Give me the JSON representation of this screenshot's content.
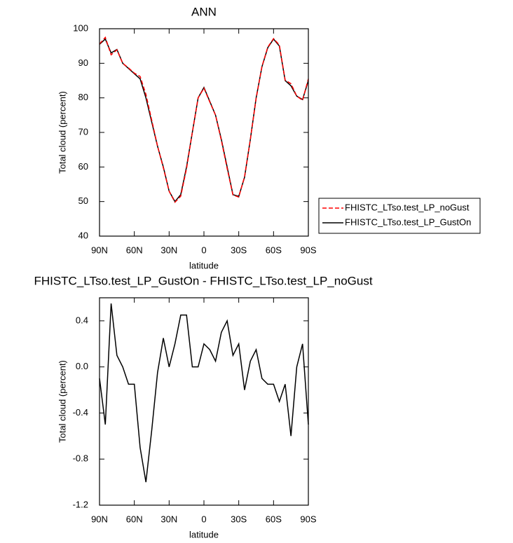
{
  "chart_data": [
    {
      "type": "line",
      "title": "ANN",
      "x_label": "latitude",
      "y_label": "Total cloud (percent)",
      "x": [
        90,
        85,
        80,
        75,
        70,
        65,
        60,
        55,
        50,
        45,
        40,
        35,
        30,
        25,
        20,
        15,
        10,
        5,
        0,
        -5,
        -10,
        -15,
        -20,
        -25,
        -30,
        -35,
        -40,
        -45,
        -50,
        -55,
        -60,
        -65,
        -70,
        -75,
        -80,
        -85,
        -90
      ],
      "xlim": [
        90,
        -90
      ],
      "xticks": [
        {
          "value": 90,
          "label": "90N"
        },
        {
          "value": 60,
          "label": "60N"
        },
        {
          "value": 30,
          "label": "30N"
        },
        0,
        {
          "value": -30,
          "label": "30S"
        },
        {
          "value": -60,
          "label": "60S"
        },
        {
          "value": -90,
          "label": "90S"
        }
      ],
      "ylim": [
        40,
        100
      ],
      "yticks": [
        40,
        50,
        60,
        70,
        80,
        90,
        100
      ],
      "legend": "right",
      "series": [
        {
          "name": "FHISTC_LTso.test_LP_noGust",
          "color": "#ff0000",
          "dashed": true,
          "values": [
            95.6,
            97.5,
            92.45,
            93.9,
            90,
            88.65,
            87.15,
            86.2,
            81,
            73.55,
            66.05,
            59.75,
            53,
            49.8,
            51.55,
            59.55,
            70,
            80,
            82.8,
            78.85,
            74.95,
            67.7,
            59.6,
            51.9,
            51.3,
            57.2,
            67.95,
            79.85,
            89.1,
            94.65,
            97.15,
            95.3,
            85.15,
            84.1,
            80.5,
            79.3,
            85.5
          ]
        },
        {
          "name": "FHISTC_LTso.test_LP_GustOn",
          "color": "#000000",
          "dashed": false,
          "values": [
            95.5,
            97,
            93,
            94,
            90,
            88.5,
            87,
            85.5,
            80,
            73,
            66,
            60,
            53,
            50,
            52,
            60,
            70,
            80,
            83,
            79,
            75,
            68,
            60,
            52,
            51.5,
            57,
            68,
            80,
            89,
            94.5,
            97,
            95,
            85,
            83.5,
            80.5,
            79.5,
            85
          ]
        }
      ]
    },
    {
      "type": "line",
      "title": "FHISTC_LTso.test_LP_GustOn - FHISTC_LTso.test_LP_noGust",
      "x_label": "latitude",
      "y_label": "Total cloud (percent)",
      "x": [
        90,
        85,
        80,
        75,
        70,
        65,
        60,
        55,
        50,
        45,
        40,
        35,
        30,
        25,
        20,
        15,
        10,
        5,
        0,
        -5,
        -10,
        -15,
        -20,
        -25,
        -30,
        -35,
        -40,
        -45,
        -50,
        -55,
        -60,
        -65,
        -70,
        -75,
        -80,
        -85,
        -90
      ],
      "xlim": [
        90,
        -90
      ],
      "xticks": [
        {
          "value": 90,
          "label": "90N"
        },
        {
          "value": 60,
          "label": "60N"
        },
        {
          "value": 30,
          "label": "30N"
        },
        0,
        {
          "value": -30,
          "label": "30S"
        },
        {
          "value": -60,
          "label": "60S"
        },
        {
          "value": -90,
          "label": "90S"
        }
      ],
      "ylim": [
        -1.2,
        0.6
      ],
      "yticks": [
        -1.2,
        -0.8,
        -0.4,
        {
          "value": 0,
          "label": "0.0"
        },
        0.4
      ],
      "series": [
        {
          "color": "#000000",
          "dashed": false,
          "values": [
            -0.1,
            -0.5,
            0.55,
            0.1,
            0,
            -0.15,
            -0.15,
            -0.7,
            -1.0,
            -0.55,
            -0.05,
            0.25,
            0,
            0.2,
            0.45,
            0.45,
            0,
            0,
            0.2,
            0.15,
            0.05,
            0.3,
            0.4,
            0.1,
            0.2,
            -0.2,
            0.05,
            0.15,
            -0.1,
            -0.15,
            -0.15,
            -0.3,
            -0.15,
            -0.6,
            0,
            0.2,
            -0.5
          ]
        }
      ]
    }
  ]
}
